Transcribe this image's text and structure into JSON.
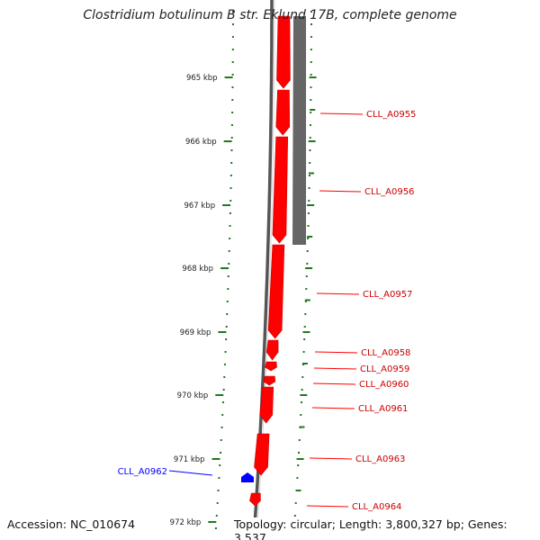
{
  "title": "Clostridium botulinum B str. Eklund 17B, complete genome",
  "footer": {
    "accession": "Accession: NC_010674",
    "topology": "Topology: circular; Length: 3,800,327 bp; Genes: 3,537"
  },
  "colors": {
    "forward_gene": "#ff0000",
    "reverse_gene": "#0000ff",
    "tick": "#227722",
    "backbone": "#777777",
    "operon_band": "#666666"
  },
  "ticks": [
    "965 kbp",
    "966 kbp",
    "967 kbp",
    "968 kbp",
    "969 kbp",
    "970 kbp",
    "971 kbp",
    "972 kbp"
  ],
  "genes": [
    {
      "label": "CLL_A0955",
      "strand": "forward"
    },
    {
      "label": "CLL_A0956",
      "strand": "forward"
    },
    {
      "label": "CLL_A0957",
      "strand": "forward"
    },
    {
      "label": "CLL_A0958",
      "strand": "forward"
    },
    {
      "label": "CLL_A0959",
      "strand": "forward"
    },
    {
      "label": "CLL_A0960",
      "strand": "forward"
    },
    {
      "label": "CLL_A0961",
      "strand": "forward"
    },
    {
      "label": "CLL_A0963",
      "strand": "forward"
    },
    {
      "label": "CLL_A0964",
      "strand": "forward"
    },
    {
      "label": "CLL_A0962",
      "strand": "reverse"
    }
  ]
}
